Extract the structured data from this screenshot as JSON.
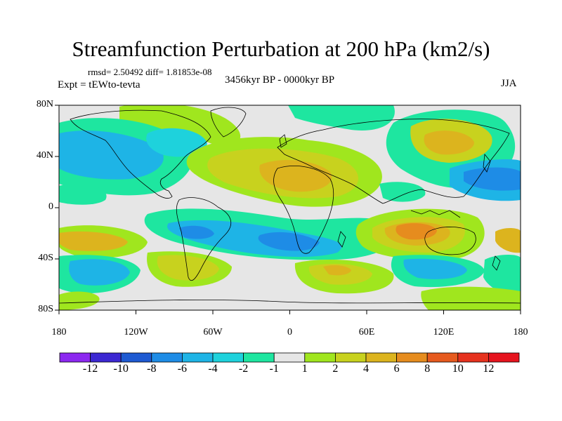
{
  "title": "Streamfunction Perturbation at 200 hPa (km2/s)",
  "stats": "rmsd= 2.50492 diff= 1.81853e-08",
  "experiment": "Expt = tEWto-tevta",
  "period": "3456kyr BP - 0000kyr BP",
  "season": "JJA",
  "map": {
    "lat_ticks": [
      "80N",
      "40N",
      "0",
      "40S",
      "80S"
    ],
    "lon_ticks": [
      "180",
      "120W",
      "60W",
      "0",
      "60E",
      "120E",
      "180"
    ]
  },
  "colorbar": {
    "labels": [
      "-12",
      "-10",
      "-8",
      "-6",
      "-4",
      "-2",
      "-1",
      "1",
      "2",
      "4",
      "6",
      "8",
      "10",
      "12"
    ],
    "colors": [
      "#8c28f0",
      "#3c28d2",
      "#1e5ad2",
      "#1e8ce6",
      "#1eb4e6",
      "#1ed2dc",
      "#1ee6a0",
      "#e6e6e6",
      "#a0e61e",
      "#c8d21e",
      "#dcb41e",
      "#e68c1e",
      "#e65a1e",
      "#e6321e",
      "#e6141e"
    ]
  },
  "chart_data": {
    "type": "heatmap",
    "title": "Streamfunction Perturbation at 200 hPa (km2/s)",
    "projection": "cylindrical equidistant",
    "lon_range": [
      -180,
      180
    ],
    "lat_range": [
      -90,
      90
    ],
    "contour_levels": [
      -12,
      -10,
      -8,
      -6,
      -4,
      -2,
      -1,
      1,
      2,
      4,
      6,
      8,
      10,
      12
    ],
    "features": [
      {
        "lon": 0,
        "lat": 27,
        "value": 6
      },
      {
        "lon": 15,
        "lat": 62,
        "value": 2
      },
      {
        "lon": 100,
        "lat": 55,
        "value": 6
      },
      {
        "lon": 150,
        "lat": 28,
        "value": -6
      },
      {
        "lon": 105,
        "lat": -25,
        "value": 8
      },
      {
        "lon": 0,
        "lat": -35,
        "value": -5
      },
      {
        "lon": -130,
        "lat": -50,
        "value": -4
      },
      {
        "lon": -180,
        "lat": -30,
        "value": 5
      }
    ]
  }
}
